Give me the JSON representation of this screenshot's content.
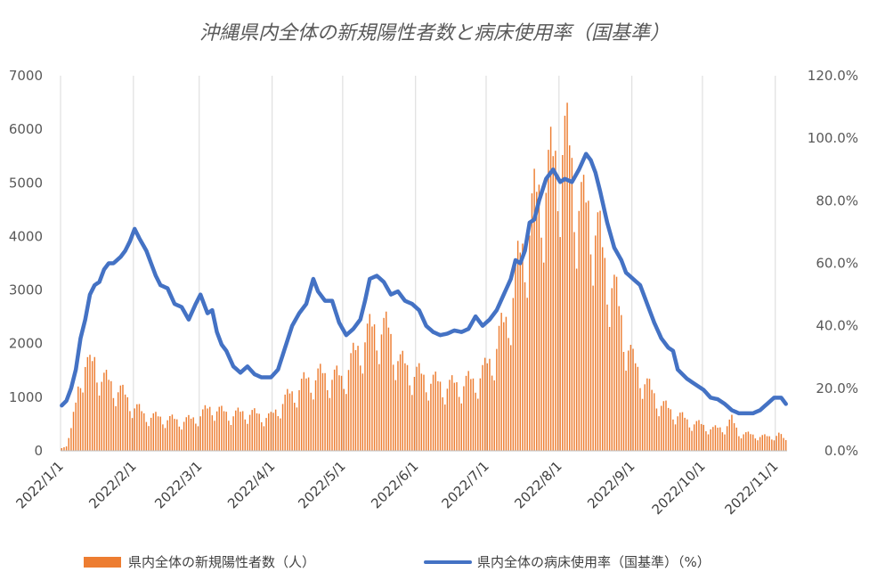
{
  "chart_data": {
    "type": "bar+line",
    "title": "沖縄県内全体の新規陽性者数と病床使用率（国基準）",
    "x_start": "2022-01-01",
    "x_end": "2022-11-05",
    "x_tick_labels": [
      "2022/1/1",
      "2022/2/1",
      "2022/3/1",
      "2022/4/1",
      "2022/5/1",
      "2022/6/1",
      "2022/7/1",
      "2022/8/1",
      "2022/9/1",
      "2022/10/1",
      "2022/11/1"
    ],
    "x_tick_dates": [
      "2022-01-01",
      "2022-02-01",
      "2022-03-01",
      "2022-04-01",
      "2022-05-01",
      "2022-06-01",
      "2022-07-01",
      "2022-08-01",
      "2022-09-01",
      "2022-10-01",
      "2022-11-01"
    ],
    "y_left": {
      "min": 0,
      "max": 7000,
      "ticks": [
        0,
        1000,
        2000,
        3000,
        4000,
        5000,
        6000,
        7000
      ],
      "tick_labels": [
        "0",
        "1000",
        "2000",
        "3000",
        "4000",
        "5000",
        "6000",
        "7000"
      ]
    },
    "y_right": {
      "min": 0,
      "max": 120,
      "ticks": [
        0,
        20,
        40,
        60,
        80,
        100,
        120
      ],
      "tick_labels": [
        "0.0%",
        "20.0%",
        "40.0%",
        "60.0%",
        "80.0%",
        "100.0%",
        "120.0%"
      ]
    },
    "grid": "vertical-at-month-ticks",
    "legend_position": "bottom",
    "series": [
      {
        "name": "県内全体の新規陽性者数（人）",
        "type": "bar",
        "axis": "left",
        "color": "#ED7D31",
        "anchors": [
          [
            "2022-01-01",
            50
          ],
          [
            "2022-01-03",
            120
          ],
          [
            "2022-01-05",
            400
          ],
          [
            "2022-01-07",
            900
          ],
          [
            "2022-01-09",
            1500
          ],
          [
            "2022-01-11",
            1700
          ],
          [
            "2022-01-13",
            1600
          ],
          [
            "2022-01-15",
            1750
          ],
          [
            "2022-01-18",
            1400
          ],
          [
            "2022-01-22",
            1300
          ],
          [
            "2022-01-26",
            1150
          ],
          [
            "2022-01-31",
            900
          ],
          [
            "2022-02-05",
            700
          ],
          [
            "2022-02-10",
            650
          ],
          [
            "2022-02-15",
            620
          ],
          [
            "2022-02-20",
            580
          ],
          [
            "2022-02-25",
            600
          ],
          [
            "2022-03-01",
            700
          ],
          [
            "2022-03-06",
            850
          ],
          [
            "2022-03-10",
            750
          ],
          [
            "2022-03-15",
            700
          ],
          [
            "2022-03-20",
            750
          ],
          [
            "2022-03-25",
            700
          ],
          [
            "2022-03-31",
            650
          ],
          [
            "2022-04-05",
            950
          ],
          [
            "2022-04-10",
            1150
          ],
          [
            "2022-04-15",
            1350
          ],
          [
            "2022-04-20",
            1450
          ],
          [
            "2022-04-25",
            1450
          ],
          [
            "2022-04-30",
            1400
          ],
          [
            "2022-05-05",
            1800
          ],
          [
            "2022-05-10",
            2200
          ],
          [
            "2022-05-15",
            2400
          ],
          [
            "2022-05-20",
            2300
          ],
          [
            "2022-05-25",
            1700
          ],
          [
            "2022-05-31",
            1500
          ],
          [
            "2022-06-05",
            1400
          ],
          [
            "2022-06-10",
            1300
          ],
          [
            "2022-06-15",
            1250
          ],
          [
            "2022-06-20",
            1300
          ],
          [
            "2022-06-25",
            1350
          ],
          [
            "2022-06-30",
            1550
          ],
          [
            "2022-07-03",
            1800
          ],
          [
            "2022-07-06",
            2200
          ],
          [
            "2022-07-09",
            2500
          ],
          [
            "2022-07-12",
            3100
          ],
          [
            "2022-07-15",
            3700
          ],
          [
            "2022-07-18",
            4200
          ],
          [
            "2022-07-21",
            4700
          ],
          [
            "2022-07-24",
            5100
          ],
          [
            "2022-07-27",
            5300
          ],
          [
            "2022-07-30",
            5600
          ],
          [
            "2022-08-02",
            6000
          ],
          [
            "2022-08-05",
            5700
          ],
          [
            "2022-08-08",
            5000
          ],
          [
            "2022-08-11",
            4600
          ],
          [
            "2022-08-14",
            4700
          ],
          [
            "2022-08-17",
            4200
          ],
          [
            "2022-08-20",
            3600
          ],
          [
            "2022-08-23",
            3300
          ],
          [
            "2022-08-26",
            2700
          ],
          [
            "2022-08-29",
            2200
          ],
          [
            "2022-09-01",
            1700
          ],
          [
            "2022-09-04",
            1500
          ],
          [
            "2022-09-08",
            1200
          ],
          [
            "2022-09-12",
            950
          ],
          [
            "2022-09-16",
            800
          ],
          [
            "2022-09-20",
            700
          ],
          [
            "2022-09-25",
            560
          ],
          [
            "2022-09-30",
            500
          ],
          [
            "2022-10-05",
            420
          ],
          [
            "2022-10-10",
            450
          ],
          [
            "2022-10-13",
            600
          ],
          [
            "2022-10-16",
            350
          ],
          [
            "2022-10-20",
            320
          ],
          [
            "2022-10-25",
            280
          ],
          [
            "2022-10-30",
            270
          ],
          [
            "2022-11-02",
            320
          ],
          [
            "2022-11-05",
            200
          ]
        ]
      },
      {
        "name": "県内全体の病床使用率（国基準）（%）",
        "type": "line",
        "axis": "right",
        "color": "#4472C4",
        "anchors": [
          [
            "2022-01-01",
            14.5
          ],
          [
            "2022-01-03",
            16
          ],
          [
            "2022-01-05",
            20
          ],
          [
            "2022-01-07",
            26
          ],
          [
            "2022-01-09",
            36
          ],
          [
            "2022-01-11",
            42
          ],
          [
            "2022-01-13",
            50
          ],
          [
            "2022-01-15",
            53
          ],
          [
            "2022-01-17",
            54
          ],
          [
            "2022-01-19",
            58
          ],
          [
            "2022-01-21",
            60
          ],
          [
            "2022-01-23",
            60
          ],
          [
            "2022-01-26",
            62
          ],
          [
            "2022-01-28",
            64
          ],
          [
            "2022-01-30",
            67
          ],
          [
            "2022-02-01",
            71
          ],
          [
            "2022-02-03",
            68
          ],
          [
            "2022-02-06",
            64
          ],
          [
            "2022-02-08",
            60
          ],
          [
            "2022-02-10",
            56
          ],
          [
            "2022-02-12",
            53
          ],
          [
            "2022-02-15",
            52
          ],
          [
            "2022-02-18",
            47
          ],
          [
            "2022-02-21",
            46
          ],
          [
            "2022-02-24",
            42
          ],
          [
            "2022-02-27",
            47
          ],
          [
            "2022-03-01",
            50
          ],
          [
            "2022-03-04",
            44
          ],
          [
            "2022-03-06",
            45
          ],
          [
            "2022-03-08",
            38
          ],
          [
            "2022-03-10",
            34
          ],
          [
            "2022-03-12",
            32
          ],
          [
            "2022-03-15",
            27
          ],
          [
            "2022-03-18",
            25
          ],
          [
            "2022-03-21",
            27
          ],
          [
            "2022-03-24",
            24.5
          ],
          [
            "2022-03-27",
            23.5
          ],
          [
            "2022-03-31",
            23.5
          ],
          [
            "2022-04-03",
            26
          ],
          [
            "2022-04-06",
            33
          ],
          [
            "2022-04-09",
            40
          ],
          [
            "2022-04-12",
            44
          ],
          [
            "2022-04-15",
            47
          ],
          [
            "2022-04-18",
            55
          ],
          [
            "2022-04-20",
            51
          ],
          [
            "2022-04-23",
            48
          ],
          [
            "2022-04-26",
            48
          ],
          [
            "2022-04-29",
            41
          ],
          [
            "2022-05-02",
            37
          ],
          [
            "2022-05-05",
            39
          ],
          [
            "2022-05-08",
            42
          ],
          [
            "2022-05-10",
            48
          ],
          [
            "2022-05-12",
            55
          ],
          [
            "2022-05-15",
            56
          ],
          [
            "2022-05-18",
            54
          ],
          [
            "2022-05-21",
            50
          ],
          [
            "2022-05-24",
            51
          ],
          [
            "2022-05-27",
            48
          ],
          [
            "2022-05-30",
            47
          ],
          [
            "2022-06-02",
            45
          ],
          [
            "2022-06-05",
            40
          ],
          [
            "2022-06-08",
            38
          ],
          [
            "2022-06-11",
            37
          ],
          [
            "2022-06-14",
            37.5
          ],
          [
            "2022-06-17",
            38.5
          ],
          [
            "2022-06-20",
            38
          ],
          [
            "2022-06-23",
            39
          ],
          [
            "2022-06-26",
            43
          ],
          [
            "2022-06-29",
            40
          ],
          [
            "2022-07-02",
            42
          ],
          [
            "2022-07-05",
            45
          ],
          [
            "2022-07-08",
            50
          ],
          [
            "2022-07-11",
            55
          ],
          [
            "2022-07-13",
            61
          ],
          [
            "2022-07-15",
            60
          ],
          [
            "2022-07-17",
            64
          ],
          [
            "2022-07-19",
            73
          ],
          [
            "2022-07-21",
            74
          ],
          [
            "2022-07-23",
            80
          ],
          [
            "2022-07-26",
            87
          ],
          [
            "2022-07-29",
            90
          ],
          [
            "2022-08-01",
            86
          ],
          [
            "2022-08-03",
            87
          ],
          [
            "2022-08-06",
            86
          ],
          [
            "2022-08-09",
            90
          ],
          [
            "2022-08-12",
            95
          ],
          [
            "2022-08-14",
            93
          ],
          [
            "2022-08-16",
            89
          ],
          [
            "2022-08-18",
            83
          ],
          [
            "2022-08-21",
            73
          ],
          [
            "2022-08-24",
            65
          ],
          [
            "2022-08-27",
            61
          ],
          [
            "2022-08-29",
            57
          ],
          [
            "2022-09-01",
            55
          ],
          [
            "2022-09-04",
            53
          ],
          [
            "2022-09-07",
            47
          ],
          [
            "2022-09-10",
            41
          ],
          [
            "2022-09-13",
            36
          ],
          [
            "2022-09-16",
            33
          ],
          [
            "2022-09-18",
            32
          ],
          [
            "2022-09-20",
            26
          ],
          [
            "2022-09-24",
            23
          ],
          [
            "2022-09-28",
            21
          ],
          [
            "2022-10-01",
            19.5
          ],
          [
            "2022-10-04",
            17
          ],
          [
            "2022-10-07",
            16.5
          ],
          [
            "2022-10-10",
            15
          ],
          [
            "2022-10-13",
            13
          ],
          [
            "2022-10-16",
            12
          ],
          [
            "2022-10-19",
            12
          ],
          [
            "2022-10-22",
            12
          ],
          [
            "2022-10-25",
            13
          ],
          [
            "2022-10-28",
            15
          ],
          [
            "2022-10-31",
            17
          ],
          [
            "2022-11-03",
            17
          ],
          [
            "2022-11-05",
            15
          ]
        ]
      }
    ]
  }
}
